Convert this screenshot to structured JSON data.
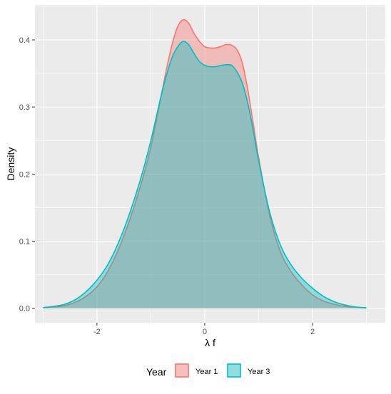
{
  "chart_data": {
    "type": "area",
    "title": "",
    "xlabel": "λ f",
    "ylabel": "Density",
    "xlim": [
      -3.15,
      3.35
    ],
    "ylim": [
      -0.0215,
      0.452
    ],
    "xticks": [
      -2,
      0,
      2
    ],
    "xtick_labels": [
      "-2",
      "0",
      "2"
    ],
    "yticks": [
      0.0,
      0.1,
      0.2,
      0.3,
      0.4
    ],
    "ytick_labels": [
      "0.0",
      "0.1",
      "0.2",
      "0.3",
      "0.4"
    ],
    "grid": true,
    "legend": {
      "title": "Year",
      "placement": "bottom"
    },
    "series": [
      {
        "name": "Year 1",
        "color": "#f8766d",
        "fill": "#f8766d",
        "fill_opacity": 0.4,
        "x": [
          -3.0,
          -2.8,
          -2.6,
          -2.4,
          -2.2,
          -2.0,
          -1.8,
          -1.6,
          -1.4,
          -1.2,
          -1.0,
          -0.8,
          -0.7,
          -0.6,
          -0.5,
          -0.4,
          -0.3,
          -0.2,
          -0.1,
          0.0,
          0.1,
          0.2,
          0.3,
          0.4,
          0.5,
          0.6,
          0.7,
          0.8,
          0.9,
          1.0,
          1.2,
          1.4,
          1.6,
          1.8,
          2.0,
          2.2,
          2.4,
          2.6,
          2.8,
          3.0
        ],
        "y": [
          0.001,
          0.002,
          0.004,
          0.009,
          0.018,
          0.032,
          0.055,
          0.088,
          0.13,
          0.18,
          0.24,
          0.32,
          0.36,
          0.395,
          0.42,
          0.43,
          0.425,
          0.41,
          0.398,
          0.39,
          0.388,
          0.388,
          0.39,
          0.393,
          0.392,
          0.385,
          0.365,
          0.325,
          0.275,
          0.225,
          0.14,
          0.085,
          0.055,
          0.035,
          0.02,
          0.011,
          0.006,
          0.003,
          0.0015,
          0.0005
        ]
      },
      {
        "name": "Year 3",
        "color": "#00bfc4",
        "fill": "#00bfc4",
        "fill_opacity": 0.4,
        "x": [
          -3.0,
          -2.8,
          -2.6,
          -2.4,
          -2.2,
          -2.0,
          -1.8,
          -1.6,
          -1.4,
          -1.2,
          -1.0,
          -0.8,
          -0.7,
          -0.6,
          -0.5,
          -0.4,
          -0.3,
          -0.2,
          -0.1,
          0.0,
          0.1,
          0.2,
          0.3,
          0.4,
          0.5,
          0.6,
          0.7,
          0.8,
          0.9,
          1.0,
          1.2,
          1.4,
          1.6,
          1.8,
          2.0,
          2.2,
          2.4,
          2.6,
          2.8,
          3.0
        ],
        "y": [
          0.001,
          0.003,
          0.006,
          0.013,
          0.025,
          0.042,
          0.065,
          0.098,
          0.14,
          0.19,
          0.25,
          0.32,
          0.35,
          0.375,
          0.39,
          0.398,
          0.393,
          0.38,
          0.368,
          0.362,
          0.36,
          0.36,
          0.362,
          0.363,
          0.362,
          0.352,
          0.335,
          0.305,
          0.265,
          0.22,
          0.145,
          0.095,
          0.065,
          0.045,
          0.03,
          0.018,
          0.01,
          0.005,
          0.002,
          0.0008
        ]
      }
    ]
  }
}
